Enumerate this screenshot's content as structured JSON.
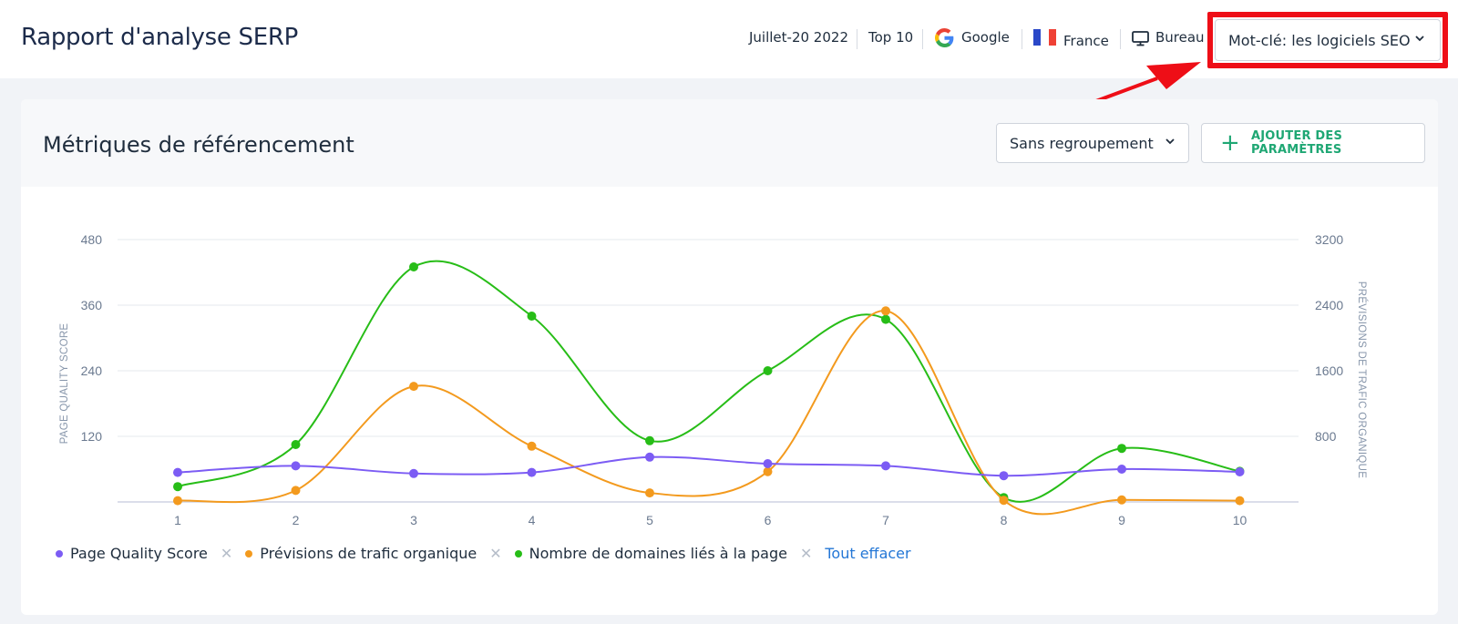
{
  "header": {
    "title": "Rapport d'analyse SERP",
    "date": "Juillet-20 2022",
    "top": "Top 10",
    "engine": "Google",
    "country": "France",
    "device": "Bureau",
    "keyword_select": "Mot-clé: les logiciels SEO"
  },
  "section": {
    "title": "Métriques de référencement",
    "group_select": "Sans regroupement",
    "add_button": "AJOUTER DES PARAMÈTRES"
  },
  "legend": {
    "clear_all": "Tout effacer"
  },
  "colors": {
    "pqs": "#7c5cf4",
    "traffic": "#f39a1e",
    "domains": "#27bd17",
    "highlight": "#ee0e17",
    "accent_green": "#1fa774",
    "link_blue": "#2477d6"
  },
  "chart_data": {
    "type": "line",
    "x": [
      "1",
      "2",
      "3",
      "4",
      "5",
      "6",
      "7",
      "8",
      "9",
      "10"
    ],
    "left_axis": {
      "label": "PAGE QUALITY SCORE",
      "ticks": [
        "120",
        "240",
        "360",
        "480"
      ],
      "ylim": [
        0,
        480
      ]
    },
    "right_axis": {
      "label": "PRÉVISIONS DE TRAFIC ORGANIQUE",
      "ticks": [
        "800",
        "1600",
        "2400",
        "3200"
      ],
      "ylim": [
        0,
        3200
      ]
    },
    "grid": true,
    "legend_position": "bottom-left",
    "series": [
      {
        "name": "Page Quality Score",
        "axis": "left",
        "color": "#7c5cf4",
        "values": [
          54,
          66,
          52,
          54,
          82,
          70,
          66,
          48,
          60,
          55
        ]
      },
      {
        "name": "Prévisions de trafic organique",
        "axis": "right",
        "color": "#f39a1e",
        "values": [
          15,
          140,
          1410,
          680,
          110,
          370,
          2330,
          20,
          25,
          15
        ]
      },
      {
        "name": "Nombre de domaines liés à la page",
        "axis": "left",
        "color": "#27bd17",
        "values": [
          28,
          105,
          430,
          340,
          112,
          240,
          334,
          8,
          98,
          56
        ]
      }
    ]
  }
}
